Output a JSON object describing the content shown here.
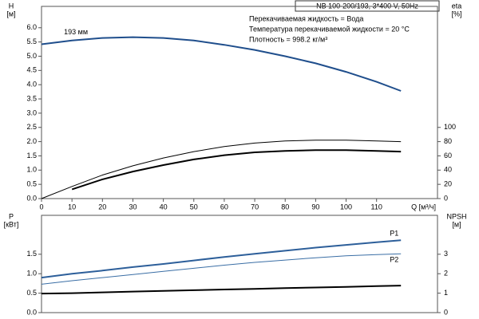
{
  "chart_data": [
    {
      "type": "line",
      "title": "NB 100-200/193, 3*400 V, 50Hz",
      "annotations": [
        "Перекачиваемая жидкость = Вода",
        "Температура перекачиваемой жидкости = 20 °C",
        "Плотность = 998.2 кг/м³"
      ],
      "xlabel": "Q [м³/ч]",
      "ylabel": "H",
      "ylabel_unit": "[м]",
      "y2label": "eta",
      "y2label_unit": "[%]",
      "x": [
        0,
        10,
        20,
        30,
        40,
        50,
        60,
        70,
        80,
        90,
        100,
        110,
        118
      ],
      "xlim": [
        0,
        130
      ],
      "xticks": [
        0,
        10,
        20,
        30,
        40,
        50,
        60,
        70,
        80,
        90,
        100,
        110
      ],
      "ylim": [
        0,
        6.75
      ],
      "yticks": [
        {
          "value": 0,
          "label": "0.0"
        },
        0.5,
        {
          "value": 1,
          "label": "1.0"
        },
        1.5,
        {
          "value": 2,
          "label": "2.0"
        },
        2.5,
        {
          "value": 3,
          "label": "3.0"
        },
        3.5,
        {
          "value": 4,
          "label": "4.0"
        },
        4.5,
        {
          "value": 5,
          "label": "5.0"
        },
        5.5,
        {
          "value": 6,
          "label": "6.0"
        }
      ],
      "y2lim": [
        0,
        270
      ],
      "y2ticks": [
        0,
        20,
        40,
        60,
        80,
        100
      ],
      "series": [
        {
          "name": "193 мм",
          "color": "#1f4e8c",
          "line_width": 2,
          "values": [
            5.42,
            5.55,
            5.64,
            5.67,
            5.64,
            5.55,
            5.4,
            5.22,
            5.0,
            4.75,
            4.45,
            4.1,
            3.78
          ]
        },
        {
          "color": "#000000",
          "line_width": 1,
          "axis": "y2",
          "values": [
            0,
            17,
            33,
            46,
            57,
            66,
            73,
            78,
            81,
            82,
            82,
            81,
            80
          ]
        },
        {
          "color": "#000000",
          "line_width": 2,
          "axis": "y2",
          "values": [
            null,
            13,
            27,
            38,
            47,
            55,
            61,
            65,
            67,
            68,
            68,
            67,
            66
          ]
        }
      ]
    },
    {
      "type": "line",
      "ylabel": "P",
      "ylabel_unit": "[кВт]",
      "y2label": "NPSH",
      "y2label_unit": "[м]",
      "x": [
        0,
        10,
        20,
        30,
        40,
        50,
        60,
        70,
        80,
        90,
        100,
        110,
        118
      ],
      "xlim": [
        0,
        130
      ],
      "ylim": [
        0,
        2.5
      ],
      "yticks": [
        {
          "value": 0,
          "label": "0.0"
        },
        0.5,
        {
          "value": 1,
          "label": "1.0"
        },
        1.5
      ],
      "y2lim": [
        0,
        5
      ],
      "y2ticks": [
        0,
        1,
        2,
        3
      ],
      "series": [
        {
          "name": "P1",
          "color": "#2d5f9a",
          "line_width": 2,
          "values": [
            0.9,
            1.0,
            1.08,
            1.17,
            1.25,
            1.34,
            1.43,
            1.51,
            1.59,
            1.67,
            1.74,
            1.81,
            1.86
          ]
        },
        {
          "name": "P2",
          "color": "#3a6ea5",
          "line_width": 1,
          "values": [
            0.73,
            0.82,
            0.9,
            0.98,
            1.06,
            1.14,
            1.22,
            1.29,
            1.35,
            1.41,
            1.46,
            1.49,
            1.51
          ]
        },
        {
          "color": "#000000",
          "line_width": 2,
          "axis": "y2",
          "values": [
            0.98,
            1.0,
            1.04,
            1.08,
            1.12,
            1.15,
            1.19,
            1.22,
            1.26,
            1.29,
            1.32,
            1.36,
            1.39
          ]
        }
      ]
    }
  ]
}
